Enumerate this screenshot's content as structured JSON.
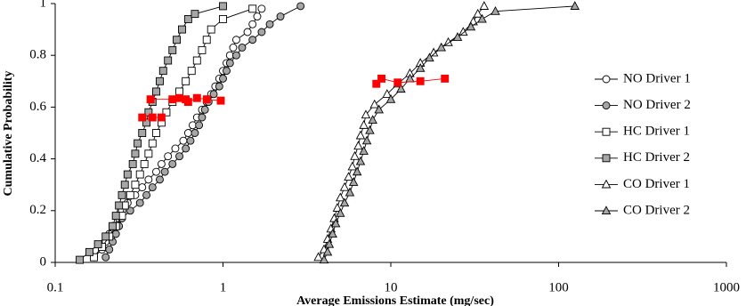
{
  "chart_data": {
    "type": "line",
    "xlabel": "Average Emissions Estimate (mg/sec)",
    "ylabel": "Cumulative Probability",
    "xscale": "log",
    "xlim": [
      0.1,
      1000
    ],
    "xticks": [
      0.1,
      1,
      10,
      100,
      1000
    ],
    "ylim": [
      0,
      1
    ],
    "yticks": [
      0,
      0.2,
      0.4,
      0.6,
      0.8,
      1
    ],
    "grid": false,
    "legend": "right",
    "series": [
      {
        "name": "NO Driver 1",
        "marker": "circle",
        "color": "#000000",
        "fill": "#ffffff",
        "x": [
          0.17,
          0.19,
          0.2,
          0.21,
          0.22,
          0.24,
          0.25,
          0.27,
          0.3,
          0.33,
          0.36,
          0.4,
          0.43,
          0.47,
          0.52,
          0.58,
          0.62,
          0.66,
          0.7,
          0.75,
          0.8,
          0.85,
          0.9,
          0.95,
          1.0,
          1.05,
          1.1,
          1.15,
          1.2,
          1.4,
          1.5,
          1.6,
          1.7
        ],
        "values": [
          0.02,
          0.05,
          0.08,
          0.11,
          0.14,
          0.17,
          0.2,
          0.23,
          0.26,
          0.29,
          0.32,
          0.35,
          0.38,
          0.41,
          0.44,
          0.47,
          0.5,
          0.53,
          0.56,
          0.59,
          0.62,
          0.65,
          0.68,
          0.71,
          0.74,
          0.77,
          0.8,
          0.83,
          0.86,
          0.89,
          0.92,
          0.95,
          0.98
        ]
      },
      {
        "name": "NO Driver 2",
        "marker": "circle",
        "color": "#000000",
        "fill": "#a6a6a6",
        "x": [
          0.2,
          0.21,
          0.22,
          0.23,
          0.24,
          0.25,
          0.28,
          0.32,
          0.35,
          0.38,
          0.42,
          0.45,
          0.5,
          0.55,
          0.6,
          0.64,
          0.68,
          0.72,
          0.75,
          0.78,
          0.82,
          0.88,
          0.95,
          1.0,
          1.05,
          1.1,
          1.2,
          1.3,
          1.5,
          1.7,
          1.9,
          2.2,
          2.9
        ],
        "values": [
          0.02,
          0.05,
          0.08,
          0.11,
          0.14,
          0.17,
          0.2,
          0.23,
          0.26,
          0.29,
          0.32,
          0.35,
          0.38,
          0.41,
          0.44,
          0.47,
          0.5,
          0.53,
          0.56,
          0.59,
          0.62,
          0.65,
          0.68,
          0.71,
          0.74,
          0.77,
          0.8,
          0.83,
          0.86,
          0.89,
          0.92,
          0.95,
          0.99
        ]
      },
      {
        "name": "HC Driver 1",
        "marker": "square",
        "color": "#000000",
        "fill": "#ffffff",
        "x": [
          0.17,
          0.19,
          0.21,
          0.23,
          0.25,
          0.26,
          0.28,
          0.3,
          0.32,
          0.34,
          0.36,
          0.38,
          0.4,
          0.43,
          0.46,
          0.5,
          0.55,
          0.6,
          0.65,
          0.7,
          0.75,
          0.8,
          0.85,
          1.0,
          1.5
        ],
        "values": [
          0.02,
          0.06,
          0.1,
          0.14,
          0.18,
          0.22,
          0.26,
          0.3,
          0.34,
          0.38,
          0.42,
          0.46,
          0.5,
          0.54,
          0.58,
          0.62,
          0.66,
          0.7,
          0.74,
          0.78,
          0.82,
          0.86,
          0.9,
          0.94,
          0.98
        ]
      },
      {
        "name": "HC Driver 2",
        "marker": "square",
        "color": "#000000",
        "fill": "#a6a6a6",
        "x": [
          0.14,
          0.16,
          0.18,
          0.2,
          0.22,
          0.23,
          0.24,
          0.25,
          0.26,
          0.27,
          0.29,
          0.3,
          0.31,
          0.33,
          0.35,
          0.36,
          0.38,
          0.4,
          0.42,
          0.44,
          0.47,
          0.5,
          0.53,
          0.57,
          0.62,
          0.68,
          1.0
        ],
        "values": [
          0.01,
          0.04,
          0.07,
          0.1,
          0.14,
          0.18,
          0.22,
          0.26,
          0.3,
          0.34,
          0.38,
          0.42,
          0.46,
          0.5,
          0.54,
          0.58,
          0.62,
          0.66,
          0.7,
          0.74,
          0.78,
          0.82,
          0.86,
          0.9,
          0.94,
          0.96,
          0.99
        ]
      },
      {
        "name": "CO Driver 1",
        "marker": "triangle",
        "color": "#000000",
        "fill": "#ffffff",
        "x": [
          3.7,
          4.0,
          4.2,
          4.4,
          4.6,
          4.8,
          5.0,
          5.3,
          5.6,
          5.9,
          6.1,
          6.4,
          6.6,
          6.9,
          7.1,
          8.0,
          9.5,
          11,
          13,
          15,
          18,
          22,
          27,
          31,
          33,
          36
        ],
        "values": [
          0.02,
          0.05,
          0.09,
          0.13,
          0.17,
          0.21,
          0.25,
          0.29,
          0.33,
          0.37,
          0.41,
          0.45,
          0.49,
          0.53,
          0.57,
          0.61,
          0.65,
          0.69,
          0.73,
          0.77,
          0.81,
          0.85,
          0.89,
          0.93,
          0.96,
          0.99
        ]
      },
      {
        "name": "CO Driver 2",
        "marker": "triangle",
        "color": "#000000",
        "fill": "#a6a6a6",
        "x": [
          4.0,
          4.2,
          4.3,
          4.5,
          4.7,
          5.0,
          5.3,
          5.7,
          6.0,
          6.3,
          6.6,
          6.9,
          7.2,
          7.5,
          7.8,
          8.5,
          10,
          11.5,
          13,
          15,
          17,
          20,
          25,
          30,
          35,
          42,
          125
        ],
        "values": [
          0.01,
          0.04,
          0.07,
          0.11,
          0.15,
          0.19,
          0.23,
          0.27,
          0.31,
          0.35,
          0.39,
          0.43,
          0.47,
          0.51,
          0.55,
          0.59,
          0.63,
          0.67,
          0.71,
          0.75,
          0.79,
          0.83,
          0.87,
          0.91,
          0.94,
          0.97,
          0.99
        ]
      },
      {
        "marker": "square",
        "color": "#ff0000",
        "fill": "#ff0000",
        "x": [
          0.33,
          0.38,
          0.43
        ],
        "values": [
          0.56,
          0.56,
          0.56
        ]
      },
      {
        "marker": "square",
        "color": "#ff0000",
        "fill": "#ff0000",
        "x": [
          0.37,
          0.5,
          0.55,
          0.6,
          0.62,
          0.7,
          0.8,
          0.97
        ],
        "values": [
          0.63,
          0.63,
          0.635,
          0.63,
          0.62,
          0.635,
          0.63,
          0.625
        ]
      },
      {
        "marker": "square",
        "color": "#ff0000",
        "fill": "#ff0000",
        "x": [
          8.2,
          8.8,
          11,
          15,
          21
        ],
        "values": [
          0.69,
          0.71,
          0.695,
          0.7,
          0.71
        ]
      }
    ]
  }
}
